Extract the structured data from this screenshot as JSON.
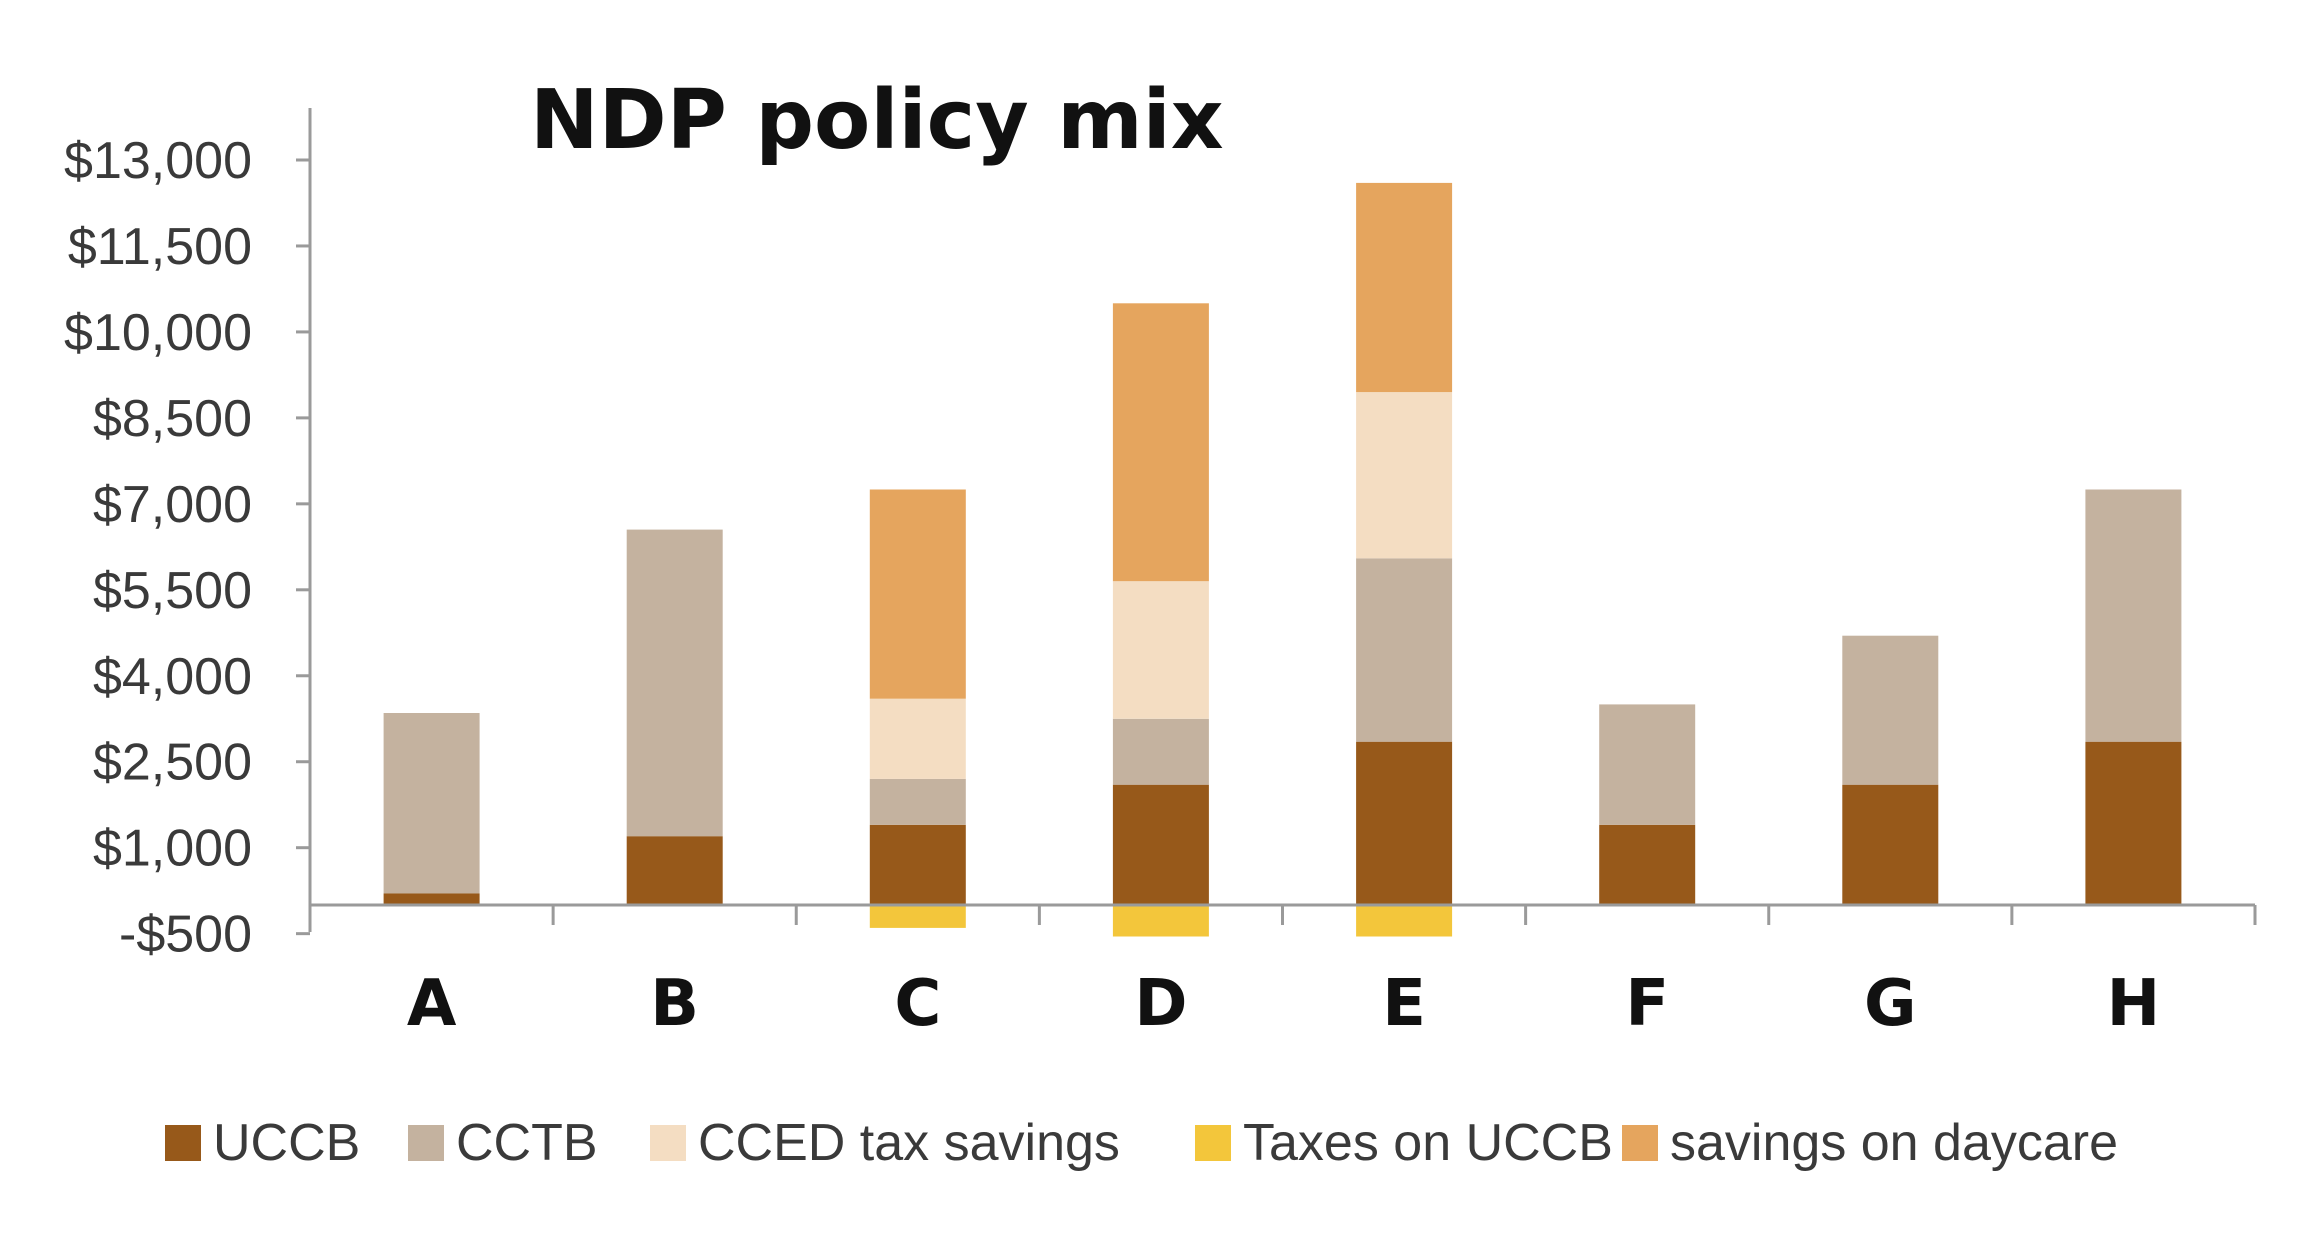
{
  "chart_data": {
    "type": "bar",
    "stacked": true,
    "title": "NDP policy mix",
    "xlabel": "",
    "ylabel": "",
    "categories": [
      "A",
      "B",
      "C",
      "D",
      "E",
      "F",
      "G",
      "H"
    ],
    "series": [
      {
        "name": "UCCB",
        "color": "#97591a",
        "values": [
          200,
          1200,
          1400,
          2100,
          2850,
          1400,
          2100,
          2850
        ]
      },
      {
        "name": "CCTB",
        "color": "#c4b29f",
        "values": [
          3150,
          5350,
          800,
          1150,
          3200,
          2100,
          2600,
          4400
        ]
      },
      {
        "name": "CCED tax savings",
        "color": "#f4ddc2",
        "values": [
          0,
          0,
          1400,
          2400,
          2900,
          0,
          0,
          0
        ]
      },
      {
        "name": "Taxes on UCCB",
        "color": "#f3c63b",
        "values": [
          0,
          0,
          -400,
          -550,
          -550,
          0,
          0,
          0
        ]
      },
      {
        "name": "savings on daycare",
        "color": "#e5a55e",
        "values": [
          0,
          0,
          3650,
          4850,
          3650,
          0,
          0,
          0
        ]
      }
    ],
    "y_ticks": [
      "$13,000",
      "$11,500",
      "$10,000",
      "$8,500",
      "$7,000",
      "$5,500",
      "$4,000",
      "$2,500",
      "$1,000",
      "-$500"
    ],
    "ylim": [
      -500,
      13000
    ],
    "grid": false,
    "legend_position": "bottom"
  }
}
